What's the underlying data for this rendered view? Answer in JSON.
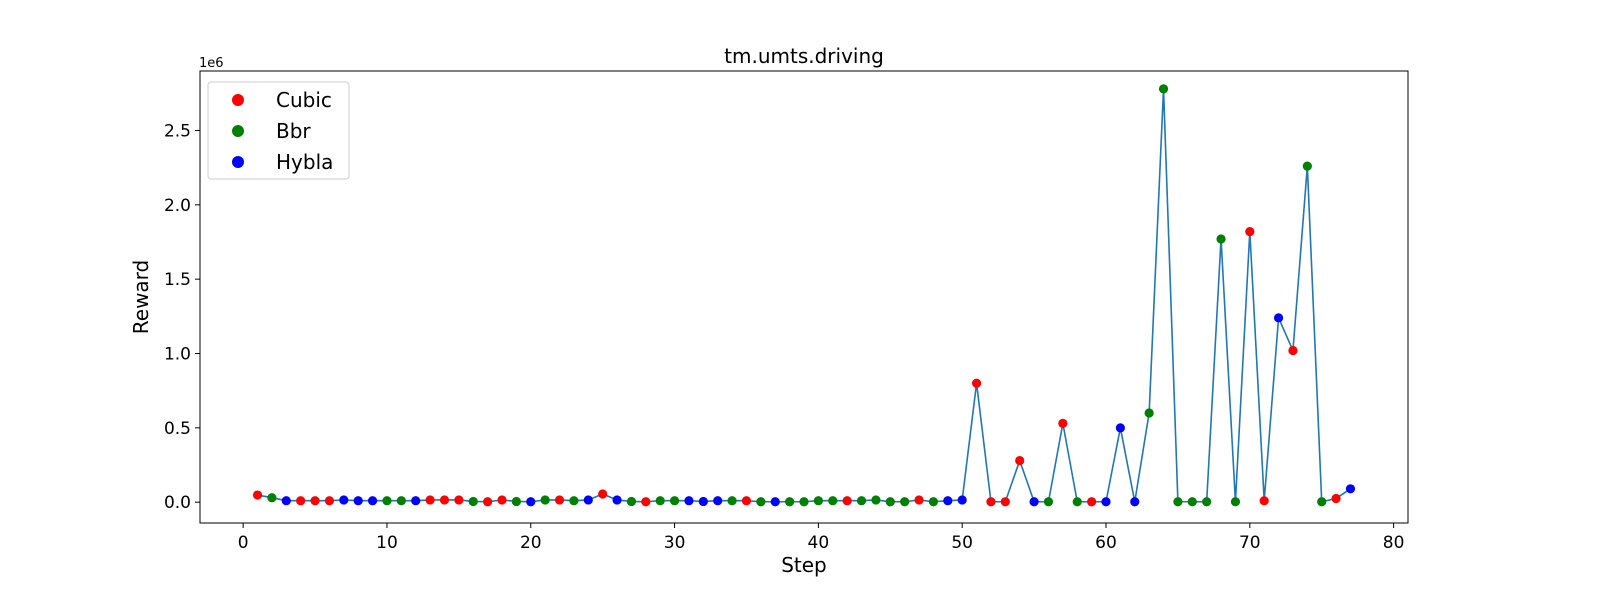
{
  "chart_data": {
    "type": "scatter",
    "title": "tm.umts.driving",
    "xlabel": "Step",
    "ylabel": "Reward",
    "y_offset_label": "1e6",
    "y_scale_factor": 1000000,
    "xlim": [
      -3,
      81
    ],
    "ylim": [
      -0.14,
      2.9
    ],
    "xticks": [
      0,
      10,
      20,
      30,
      40,
      50,
      60,
      70,
      80
    ],
    "yticks": [
      0.0,
      0.5,
      1.0,
      1.5,
      2.0,
      2.5
    ],
    "xtick_labels": [
      "0",
      "10",
      "20",
      "30",
      "40",
      "50",
      "60",
      "70",
      "80"
    ],
    "ytick_labels": [
      "0.0",
      "0.5",
      "1.0",
      "1.5",
      "2.0",
      "2.5"
    ],
    "line_color": "#1f77b4",
    "legend_position": "upper-left",
    "series": [
      {
        "name": "Cubic",
        "color": "#ff0000"
      },
      {
        "name": "Bbr",
        "color": "#008000"
      },
      {
        "name": "Hybla",
        "color": "#0000ff"
      }
    ],
    "points": [
      {
        "x": 1,
        "y": 0.048,
        "s": "Cubic"
      },
      {
        "x": 2,
        "y": 0.03,
        "s": "Bbr"
      },
      {
        "x": 3,
        "y": 0.01,
        "s": "Hybla"
      },
      {
        "x": 4,
        "y": 0.01,
        "s": "Cubic"
      },
      {
        "x": 5,
        "y": 0.01,
        "s": "Cubic"
      },
      {
        "x": 6,
        "y": 0.01,
        "s": "Cubic"
      },
      {
        "x": 7,
        "y": 0.015,
        "s": "Hybla"
      },
      {
        "x": 8,
        "y": 0.01,
        "s": "Hybla"
      },
      {
        "x": 9,
        "y": 0.01,
        "s": "Hybla"
      },
      {
        "x": 10,
        "y": 0.01,
        "s": "Bbr"
      },
      {
        "x": 11,
        "y": 0.01,
        "s": "Bbr"
      },
      {
        "x": 12,
        "y": 0.01,
        "s": "Hybla"
      },
      {
        "x": 13,
        "y": 0.015,
        "s": "Cubic"
      },
      {
        "x": 14,
        "y": 0.015,
        "s": "Cubic"
      },
      {
        "x": 15,
        "y": 0.015,
        "s": "Cubic"
      },
      {
        "x": 16,
        "y": 0.005,
        "s": "Bbr"
      },
      {
        "x": 17,
        "y": 0.003,
        "s": "Cubic"
      },
      {
        "x": 18,
        "y": 0.015,
        "s": "Cubic"
      },
      {
        "x": 19,
        "y": 0.005,
        "s": "Bbr"
      },
      {
        "x": 20,
        "y": 0.003,
        "s": "Hybla"
      },
      {
        "x": 21,
        "y": 0.015,
        "s": "Bbr"
      },
      {
        "x": 22,
        "y": 0.015,
        "s": "Cubic"
      },
      {
        "x": 23,
        "y": 0.01,
        "s": "Bbr"
      },
      {
        "x": 24,
        "y": 0.015,
        "s": "Hybla"
      },
      {
        "x": 25,
        "y": 0.055,
        "s": "Cubic"
      },
      {
        "x": 26,
        "y": 0.015,
        "s": "Hybla"
      },
      {
        "x": 27,
        "y": 0.005,
        "s": "Bbr"
      },
      {
        "x": 28,
        "y": 0.003,
        "s": "Cubic"
      },
      {
        "x": 29,
        "y": 0.01,
        "s": "Bbr"
      },
      {
        "x": 30,
        "y": 0.01,
        "s": "Bbr"
      },
      {
        "x": 31,
        "y": 0.01,
        "s": "Hybla"
      },
      {
        "x": 32,
        "y": 0.005,
        "s": "Hybla"
      },
      {
        "x": 33,
        "y": 0.01,
        "s": "Hybla"
      },
      {
        "x": 34,
        "y": 0.01,
        "s": "Bbr"
      },
      {
        "x": 35,
        "y": 0.01,
        "s": "Cubic"
      },
      {
        "x": 36,
        "y": 0.003,
        "s": "Bbr"
      },
      {
        "x": 37,
        "y": 0.003,
        "s": "Hybla"
      },
      {
        "x": 38,
        "y": 0.003,
        "s": "Bbr"
      },
      {
        "x": 39,
        "y": 0.003,
        "s": "Bbr"
      },
      {
        "x": 40,
        "y": 0.01,
        "s": "Bbr"
      },
      {
        "x": 41,
        "y": 0.01,
        "s": "Bbr"
      },
      {
        "x": 42,
        "y": 0.01,
        "s": "Cubic"
      },
      {
        "x": 43,
        "y": 0.01,
        "s": "Bbr"
      },
      {
        "x": 44,
        "y": 0.015,
        "s": "Bbr"
      },
      {
        "x": 45,
        "y": 0.003,
        "s": "Bbr"
      },
      {
        "x": 46,
        "y": 0.003,
        "s": "Bbr"
      },
      {
        "x": 47,
        "y": 0.015,
        "s": "Cubic"
      },
      {
        "x": 48,
        "y": 0.003,
        "s": "Bbr"
      },
      {
        "x": 49,
        "y": 0.01,
        "s": "Hybla"
      },
      {
        "x": 50,
        "y": 0.015,
        "s": "Hybla"
      },
      {
        "x": 51,
        "y": 0.8,
        "s": "Cubic"
      },
      {
        "x": 52,
        "y": 0.003,
        "s": "Cubic"
      },
      {
        "x": 53,
        "y": 0.003,
        "s": "Cubic"
      },
      {
        "x": 54,
        "y": 0.28,
        "s": "Cubic"
      },
      {
        "x": 55,
        "y": 0.003,
        "s": "Hybla"
      },
      {
        "x": 56,
        "y": 0.003,
        "s": "Bbr"
      },
      {
        "x": 57,
        "y": 0.53,
        "s": "Cubic"
      },
      {
        "x": 58,
        "y": 0.003,
        "s": "Bbr"
      },
      {
        "x": 59,
        "y": 0.003,
        "s": "Cubic"
      },
      {
        "x": 60,
        "y": 0.003,
        "s": "Hybla"
      },
      {
        "x": 61,
        "y": 0.5,
        "s": "Hybla"
      },
      {
        "x": 62,
        "y": 0.003,
        "s": "Hybla"
      },
      {
        "x": 63,
        "y": 0.6,
        "s": "Bbr"
      },
      {
        "x": 64,
        "y": 2.78,
        "s": "Bbr"
      },
      {
        "x": 65,
        "y": 0.003,
        "s": "Bbr"
      },
      {
        "x": 66,
        "y": 0.003,
        "s": "Bbr"
      },
      {
        "x": 67,
        "y": 0.003,
        "s": "Bbr"
      },
      {
        "x": 68,
        "y": 1.77,
        "s": "Bbr"
      },
      {
        "x": 69,
        "y": 0.003,
        "s": "Bbr"
      },
      {
        "x": 70,
        "y": 1.82,
        "s": "Cubic"
      },
      {
        "x": 71,
        "y": 0.01,
        "s": "Cubic"
      },
      {
        "x": 72,
        "y": 1.24,
        "s": "Hybla"
      },
      {
        "x": 73,
        "y": 1.02,
        "s": "Cubic"
      },
      {
        "x": 74,
        "y": 2.26,
        "s": "Bbr"
      },
      {
        "x": 75,
        "y": 0.003,
        "s": "Bbr"
      },
      {
        "x": 76,
        "y": 0.025,
        "s": "Cubic"
      },
      {
        "x": 77,
        "y": 0.09,
        "s": "Hybla"
      }
    ]
  }
}
